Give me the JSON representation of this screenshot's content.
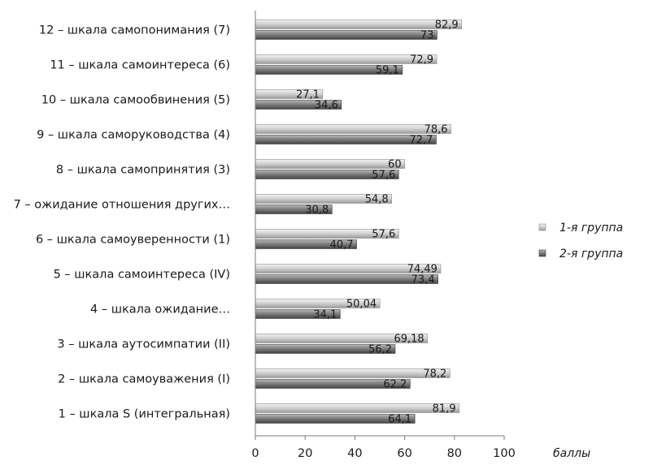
{
  "chart_data": {
    "type": "bar",
    "orientation": "horizontal",
    "categories": [
      "12 – шкала самопонимания (7)",
      "11 – шкала самоинтереса (6)",
      "10 – шкала самообвинения (5)",
      "9 – шкала саморуководства (4)",
      "8 – шкала самопринятия (3)",
      "7 – ожидание отношения других…",
      "6 – шкала самоуверенности (1)",
      "5 – шкала самоинтереса (IV)",
      "4 – шкала ожидание…",
      "3 – шкала аутосимпатии (II)",
      "2 – шкала самоуважения (I)",
      "1 – шкала S (интегральная)"
    ],
    "series": [
      {
        "name": "1-я группа",
        "values": [
          82.9,
          72.9,
          27.1,
          78.6,
          60,
          54.8,
          57.6,
          74.49,
          50.04,
          69.18,
          78.2,
          81.9
        ],
        "labels": [
          "82,9",
          "72,9",
          "27,1",
          "78,6",
          "60",
          "54,8",
          "57,6",
          "74,49",
          "50,04",
          "69,18",
          "78,2",
          "81,9"
        ],
        "color": "#c8c8c8"
      },
      {
        "name": "2-я группа",
        "values": [
          73,
          59.1,
          34.6,
          72.7,
          57.6,
          30.8,
          40.7,
          73.4,
          34.1,
          56.2,
          62.2,
          64.1
        ],
        "labels": [
          "73",
          "59,1",
          "34,6",
          "72,7",
          "57,6",
          "30,8",
          "40,7",
          "73,4",
          "34,1",
          "56,2",
          "62,2",
          "64,1"
        ],
        "color": "#7a7a7a"
      }
    ],
    "xlabel": "баллы",
    "xlim": [
      0,
      100
    ],
    "xticks": [
      "0",
      "20",
      "40",
      "60",
      "80",
      "100"
    ],
    "legend_position": "right",
    "grid": false
  }
}
